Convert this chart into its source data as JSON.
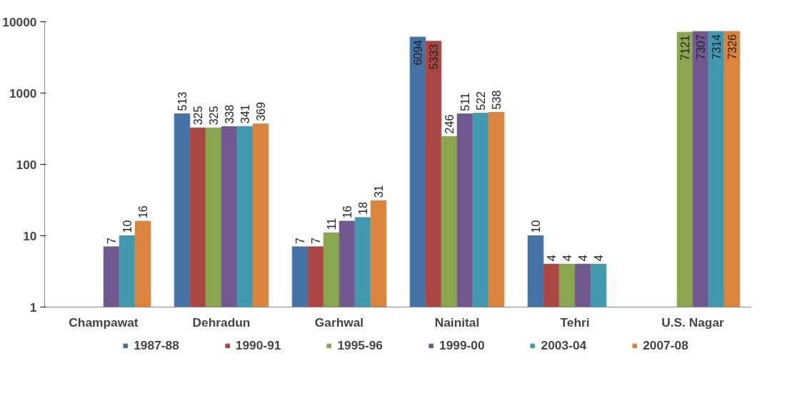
{
  "chart_data": {
    "type": "bar",
    "categories": [
      "Champawat",
      "Dehradun",
      "Garhwal",
      "Nainital",
      "Tehri",
      "U.S. Nagar"
    ],
    "series": [
      {
        "name": "1987-88",
        "color": "#4572a7",
        "values": [
          null,
          513,
          7,
          6094,
          10,
          null
        ]
      },
      {
        "name": "1990-91",
        "color": "#aa4643",
        "values": [
          null,
          325,
          7,
          5333,
          4,
          null
        ]
      },
      {
        "name": "1995-96",
        "color": "#89a54e",
        "values": [
          null,
          325,
          11,
          246,
          4,
          7121
        ]
      },
      {
        "name": "1999-00",
        "color": "#71588f",
        "values": [
          7,
          338,
          16,
          511,
          4,
          7307
        ]
      },
      {
        "name": "2003-04",
        "color": "#4198af",
        "values": [
          10,
          341,
          18,
          522,
          4,
          7314
        ]
      },
      {
        "name": "2007-08",
        "color": "#db843d",
        "values": [
          16,
          369,
          31,
          538,
          null,
          7326
        ]
      }
    ],
    "log": true,
    "ylim": [
      1,
      10000
    ],
    "yticks": [
      1,
      10,
      100,
      1000,
      10000
    ],
    "grid": false,
    "legend": "bottom",
    "data_labels": true
  }
}
